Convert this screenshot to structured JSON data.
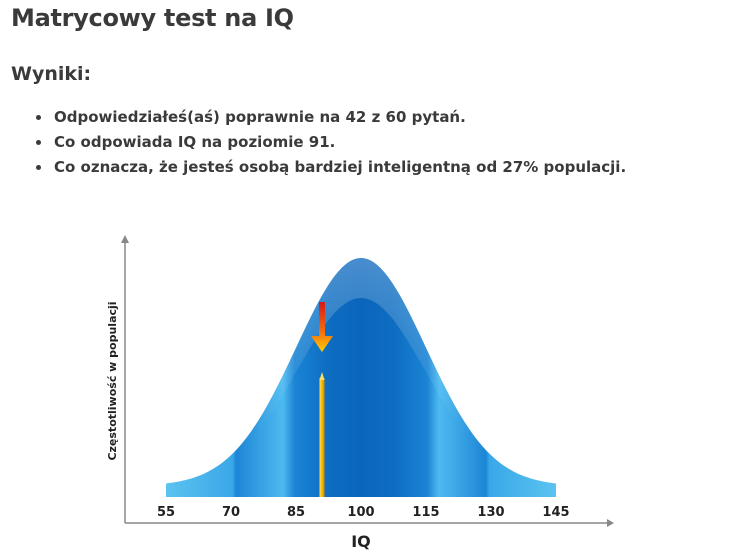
{
  "page": {
    "title": "Matrycowy test na IQ",
    "results_heading": "Wyniki:",
    "results": [
      "Odpowiedziałeś(aś) poprawnie na 42 z 60 pytań.",
      "Co odpowiada IQ na poziomie 91.",
      "Co oznacza, że jesteś osobą bardziej inteligentną od 27% populacji."
    ]
  },
  "chart_data": {
    "type": "area",
    "xlabel": "IQ",
    "ylabel": "Częstotliwość w populacji",
    "x_ticks": [
      "55",
      "70",
      "85",
      "100",
      "115",
      "130",
      "145"
    ],
    "x_tick_values": [
      55,
      70,
      85,
      100,
      115,
      130,
      145
    ],
    "xlim": [
      55,
      145
    ],
    "distribution": {
      "mean": 100,
      "sd": 15
    },
    "marker_value": 91,
    "colors": {
      "curve_light": "#5bc3f0",
      "curve_dark": "#0a6fc4",
      "marker_bar": "#f5b800",
      "arrow_top": "#e02020",
      "arrow_bottom": "#ffd000",
      "axis": "#888888"
    }
  }
}
